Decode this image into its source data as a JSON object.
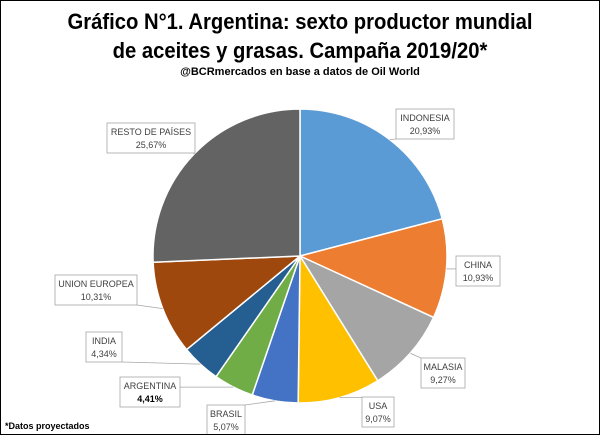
{
  "title_line1": "Gráfico N°1. Argentina: sexto productor mundial",
  "title_line2": "de aceites y grasas. Campaña 2019/20*",
  "subtitle": "@BCRmercados en base a datos de Oil World",
  "footnote": "*Datos proyectados",
  "chart_data": {
    "type": "pie",
    "title": "Gráfico N°1. Argentina: sexto productor mundial de aceites y grasas. Campaña 2019/20*",
    "categories": [
      "INDONESIA",
      "CHINA",
      "MALASIA",
      "USA",
      "BRASIL",
      "ARGENTINA",
      "INDIA",
      "UNION EUROPEA",
      "RESTO DE PAÍSES"
    ],
    "values": [
      20.93,
      10.93,
      9.27,
      9.07,
      5.07,
      4.41,
      4.34,
      10.31,
      25.67
    ],
    "labels": [
      "20,93%",
      "10,93%",
      "9,27%",
      "9,07%",
      "5,07%",
      "4,41%",
      "4,34%",
      "10,31%",
      "25,67%"
    ],
    "colors": [
      "#5B9BD5",
      "#ED7D31",
      "#A5A5A5",
      "#FFC000",
      "#4472C4",
      "#70AD47",
      "#255E91",
      "#9E480E",
      "#636363"
    ],
    "highlight": "ARGENTINA"
  }
}
